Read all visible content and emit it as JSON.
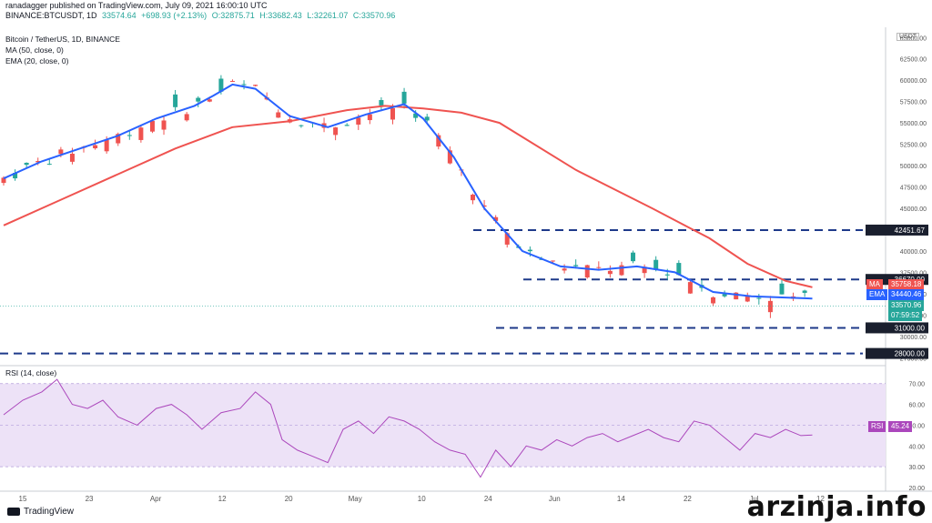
{
  "header": {
    "line1": "ranadagger published on TradingView.com, July 09, 2021 16:00:10 UTC",
    "symbol": "BINANCE:BTCUSDT, 1D",
    "price": "33574.64",
    "change": "+698.93 (+2.13%)",
    "open": "O:32875.71",
    "high": "H:33682.43",
    "low": "L:32261.07",
    "close": "C:33570.96"
  },
  "legend": {
    "title": "Bitcoin / TetherUS, 1D, BINANCE",
    "ma": "MA (50, close, 0)",
    "ema": "EMA (20, close, 0)"
  },
  "currency": "USDT",
  "tags": {
    "ma_label": "MA",
    "ma_value": "35758.18",
    "ema_label": "EMA",
    "ema_value": "34440.46",
    "price_value": "33570.96",
    "countdown": "07:59:52",
    "rsi_label": "RSI",
    "rsi_value": "45.24"
  },
  "rsi_title": "RSI (14, close)",
  "brand": "TradingView",
  "watermark": "arzinja.info",
  "colors": {
    "up": "#26a69a",
    "down": "#ef5350",
    "ma": "#ef5350",
    "ema": "#2962ff",
    "level": "#1e3a8a",
    "rsi": "#ab47bc",
    "rsi_band": "#ede2f7"
  },
  "chart_data": [
    {
      "type": "candlestick",
      "title": "Bitcoin / TetherUS, 1D, BINANCE",
      "x_tick_labels": [
        "15",
        "23",
        "Apr",
        "12",
        "20",
        "May",
        "10",
        "24",
        "Jun",
        "14",
        "22",
        "Jul",
        "12"
      ],
      "y_tick_labels": [
        "65000.00",
        "62500.00",
        "60000.00",
        "57500.00",
        "55000.00",
        "52500.00",
        "50000.00",
        "47500.00",
        "45000.00",
        "40000.00",
        "37500.00",
        "35000.00",
        "32500.00",
        "30000.00",
        "27500.00"
      ],
      "ylim": [
        27000,
        66200
      ],
      "horizontal_levels": [
        42451.67,
        36670.0,
        31000.0,
        28000.0
      ],
      "level_labels": [
        "42451.67",
        "36670.00",
        "31000.00",
        "28000.00"
      ],
      "series": [
        {
          "name": "MA (50, close, 0)",
          "values": [
            [
              0,
              43000
            ],
            [
              15,
              46000
            ],
            [
              30,
              49000
            ],
            [
              45,
              52000
            ],
            [
              60,
              54500
            ],
            [
              75,
              55200
            ],
            [
              90,
              56500
            ],
            [
              100,
              57000
            ],
            [
              110,
              56700
            ],
            [
              120,
              56200
            ],
            [
              130,
              55000
            ],
            [
              150,
              49500
            ],
            [
              170,
              45000
            ],
            [
              185,
              41500
            ],
            [
              195,
              38500
            ],
            [
              205,
              36500
            ],
            [
              212,
              35758
            ]
          ]
        },
        {
          "name": "EMA (20, close, 0)",
          "values": [
            [
              0,
              48500
            ],
            [
              10,
              50500
            ],
            [
              20,
              52000
            ],
            [
              30,
              53500
            ],
            [
              40,
              55500
            ],
            [
              50,
              57000
            ],
            [
              55,
              58200
            ],
            [
              60,
              59500
            ],
            [
              66,
              59000
            ],
            [
              75,
              55800
            ],
            [
              85,
              54500
            ],
            [
              95,
              56000
            ],
            [
              105,
              57200
            ],
            [
              110,
              55500
            ],
            [
              118,
              51000
            ],
            [
              126,
              45000
            ],
            [
              136,
              40000
            ],
            [
              146,
              38200
            ],
            [
              156,
              37800
            ],
            [
              166,
              38200
            ],
            [
              176,
              37500
            ],
            [
              186,
              35200
            ],
            [
              196,
              34700
            ],
            [
              212,
              34440
            ]
          ]
        },
        {
          "name": "RSI (14, close)",
          "values": [
            [
              0,
              55
            ],
            [
              5,
              62
            ],
            [
              10,
              66
            ],
            [
              14,
              72
            ],
            [
              18,
              60
            ],
            [
              22,
              58
            ],
            [
              26,
              62
            ],
            [
              30,
              54
            ],
            [
              35,
              50
            ],
            [
              40,
              58
            ],
            [
              44,
              60
            ],
            [
              48,
              55
            ],
            [
              52,
              48
            ],
            [
              57,
              56
            ],
            [
              62,
              58
            ],
            [
              66,
              66
            ],
            [
              70,
              60
            ],
            [
              73,
              43
            ],
            [
              77,
              38
            ],
            [
              81,
              35
            ],
            [
              85,
              32
            ],
            [
              89,
              48
            ],
            [
              93,
              52
            ],
            [
              97,
              46
            ],
            [
              101,
              54
            ],
            [
              105,
              52
            ],
            [
              109,
              48
            ],
            [
              113,
              42
            ],
            [
              117,
              38
            ],
            [
              121,
              36
            ],
            [
              125,
              25
            ],
            [
              129,
              38
            ],
            [
              133,
              30
            ],
            [
              137,
              40
            ],
            [
              141,
              38
            ],
            [
              145,
              43
            ],
            [
              149,
              40
            ],
            [
              153,
              44
            ],
            [
              157,
              46
            ],
            [
              161,
              42
            ],
            [
              165,
              45
            ],
            [
              169,
              48
            ],
            [
              173,
              44
            ],
            [
              177,
              42
            ],
            [
              181,
              52
            ],
            [
              185,
              50
            ],
            [
              189,
              44
            ],
            [
              193,
              38
            ],
            [
              197,
              46
            ],
            [
              201,
              44
            ],
            [
              205,
              48
            ],
            [
              209,
              45
            ],
            [
              212,
              45.24
            ]
          ]
        }
      ],
      "rsi_y_tick_labels": [
        "70.00",
        "60.00",
        "50.00",
        "40.00",
        "30.00",
        "20.00"
      ],
      "rsi_ylim": [
        20,
        76
      ]
    }
  ]
}
